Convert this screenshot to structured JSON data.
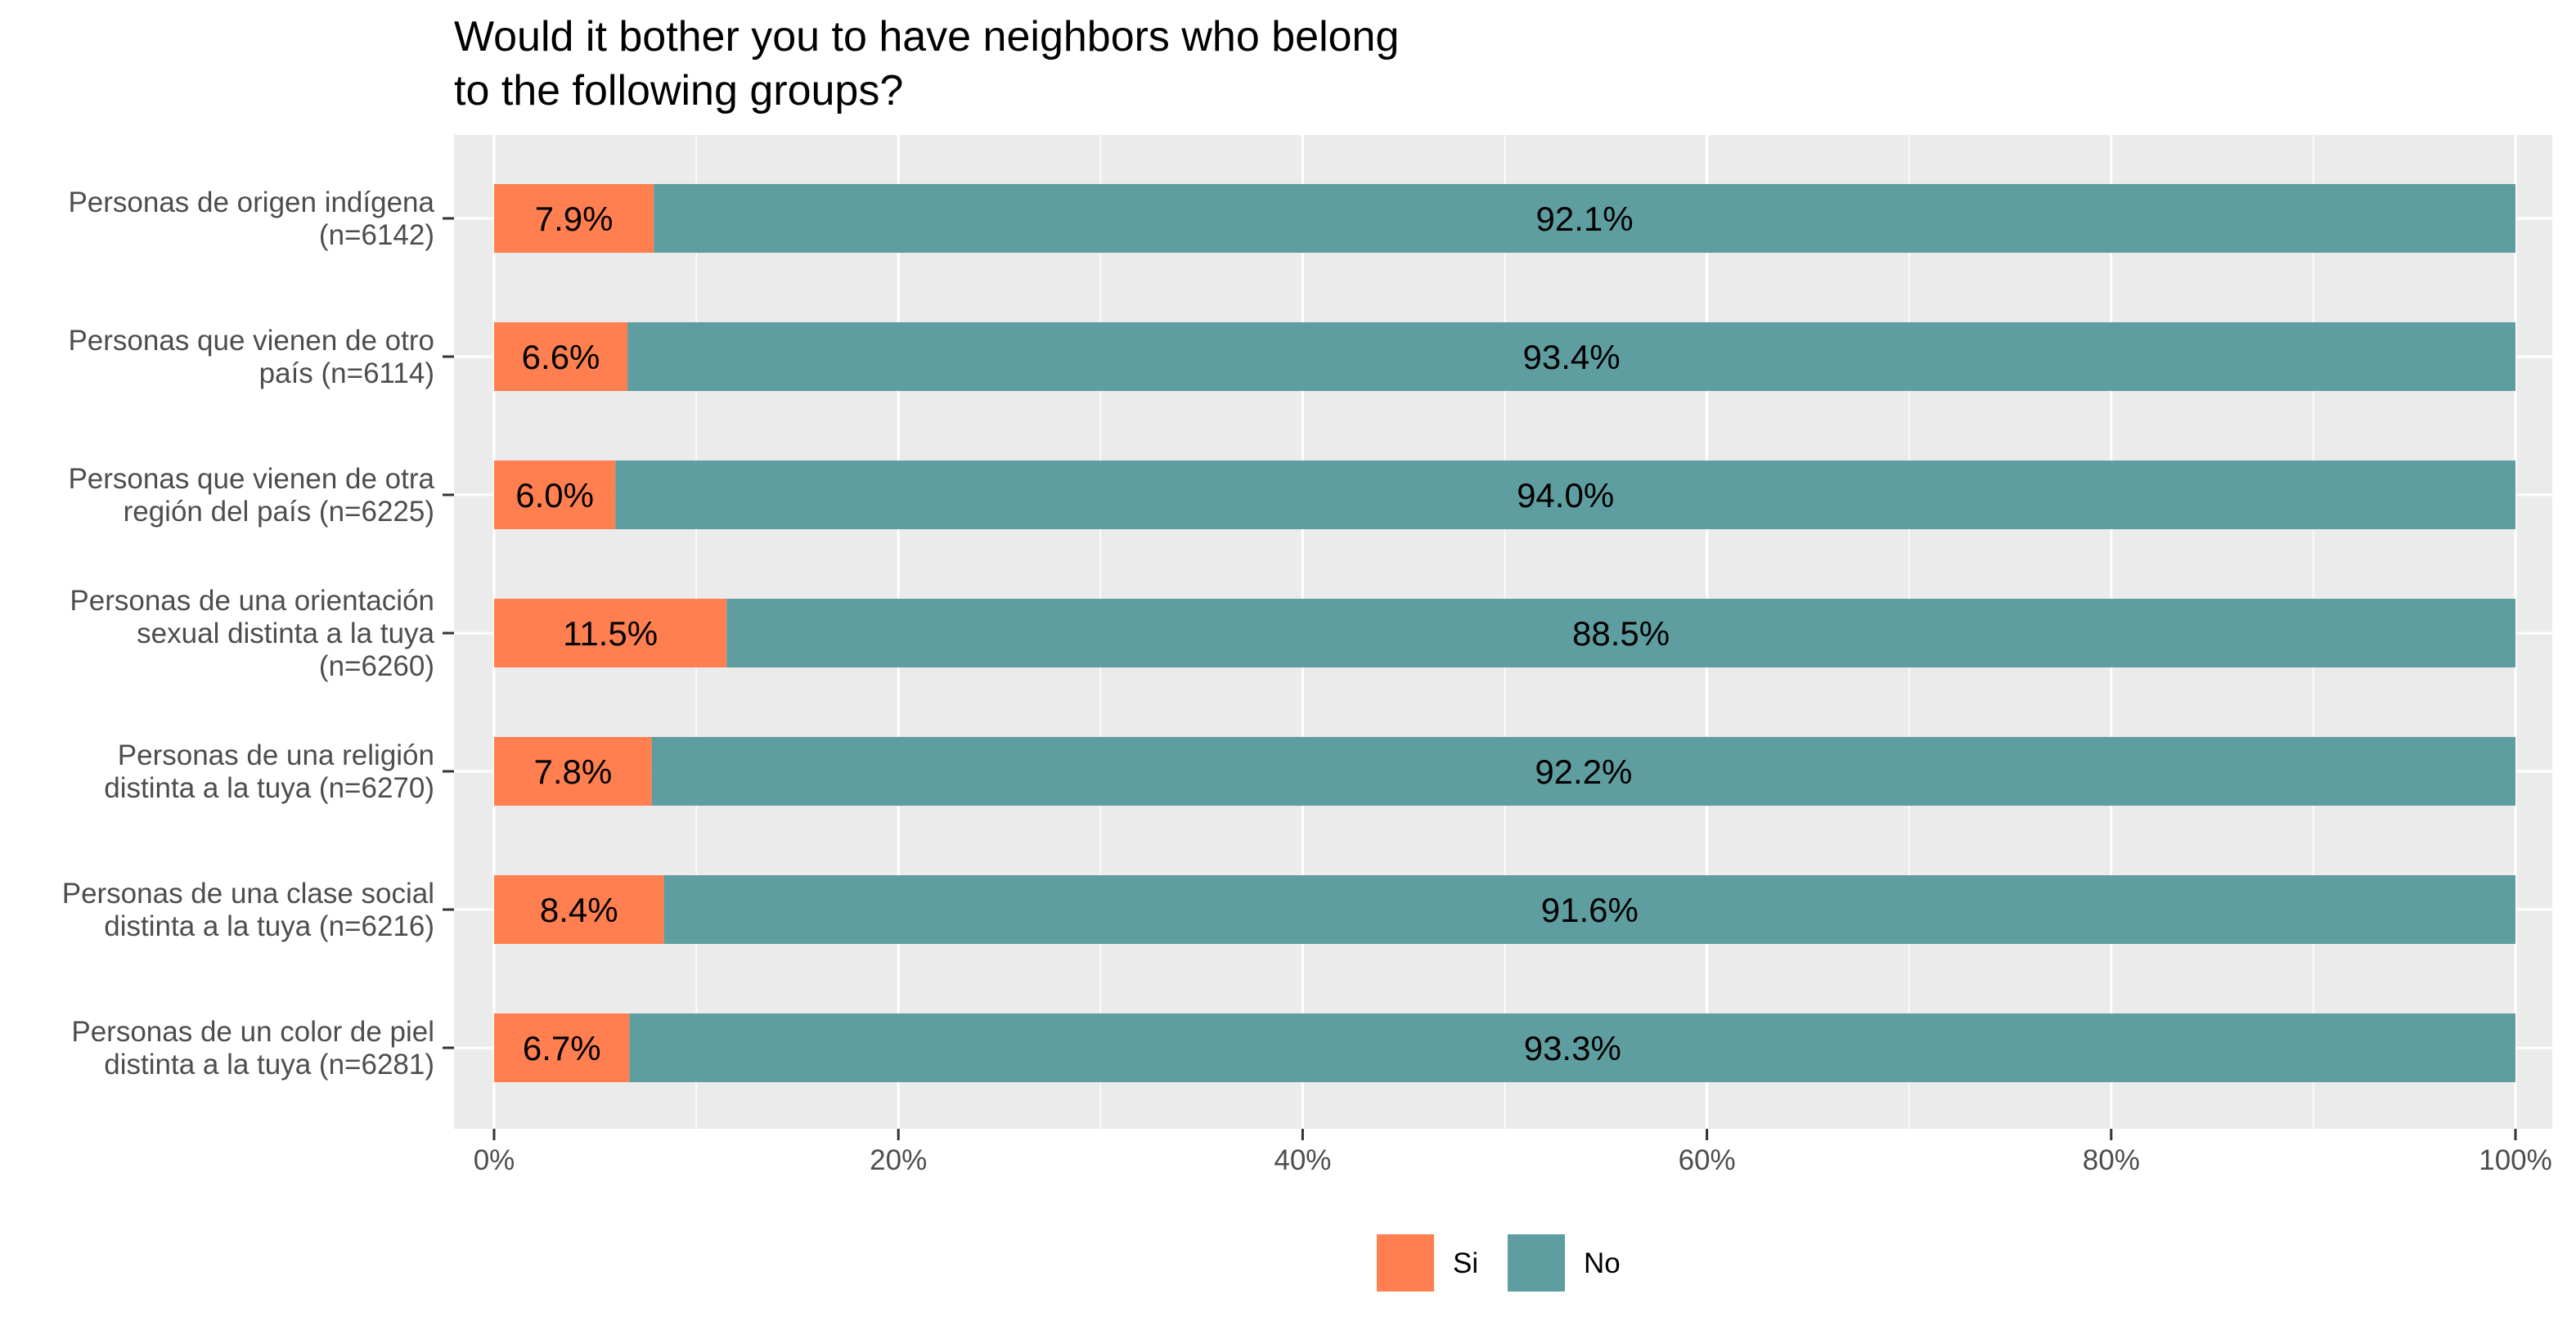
{
  "chart_data": {
    "type": "bar",
    "orientation": "horizontal",
    "stacked": true,
    "title": "Would it bother you to have neighbors who belong to the following groups?",
    "title_lines": [
      "Would it bother you to have neighbors who belong",
      "to the following groups?"
    ],
    "xlabel": "",
    "ylabel": "",
    "xlim": [
      0,
      100
    ],
    "x_ticks": [
      "0%",
      "20%",
      "40%",
      "60%",
      "80%",
      "100%"
    ],
    "grid": true,
    "legend_position": "bottom",
    "categories": [
      "Personas de origen indígena (n=6142)",
      "Personas que vienen de otro país (n=6114)",
      "Personas que vienen de otra región del país (n=6225)",
      "Personas de una orientación sexual distinta a la tuya (n=6260)",
      "Personas de una religión distinta a la tuya (n=6270)",
      "Personas de una clase social distinta a la tuya (n=6216)",
      "Personas de un color de piel distinta a la tuya (n=6281)"
    ],
    "category_lines": [
      [
        "Personas de origen indígena",
        "(n=6142)"
      ],
      [
        "Personas que vienen de otro",
        "país (n=6114)"
      ],
      [
        "Personas que vienen de otra",
        "región del país (n=6225)"
      ],
      [
        "Personas de una orientación",
        "sexual distinta a la tuya",
        "(n=6260)"
      ],
      [
        "Personas de una religión",
        "distinta a la tuya (n=6270)"
      ],
      [
        "Personas de una clase social",
        "distinta a la tuya (n=6216)"
      ],
      [
        "Personas de un color de piel",
        "distinta a la tuya (n=6281)"
      ]
    ],
    "series": [
      {
        "name": "Si",
        "color": "#FF7F50",
        "values": [
          7.9,
          6.6,
          6.0,
          11.5,
          7.8,
          8.4,
          6.7
        ],
        "labels": [
          "7.9%",
          "6.6%",
          "6.0%",
          "11.5%",
          "7.8%",
          "8.4%",
          "6.7%"
        ]
      },
      {
        "name": "No",
        "color": "#5F9EA0",
        "values": [
          92.1,
          93.4,
          94.0,
          88.5,
          92.2,
          91.6,
          93.3
        ],
        "labels": [
          "92.1%",
          "93.4%",
          "94.0%",
          "88.5%",
          "92.2%",
          "91.6%",
          "93.3%"
        ]
      }
    ]
  },
  "colors": {
    "panel_background": "#EBEBEB",
    "grid_line": "#FFFFFF"
  }
}
